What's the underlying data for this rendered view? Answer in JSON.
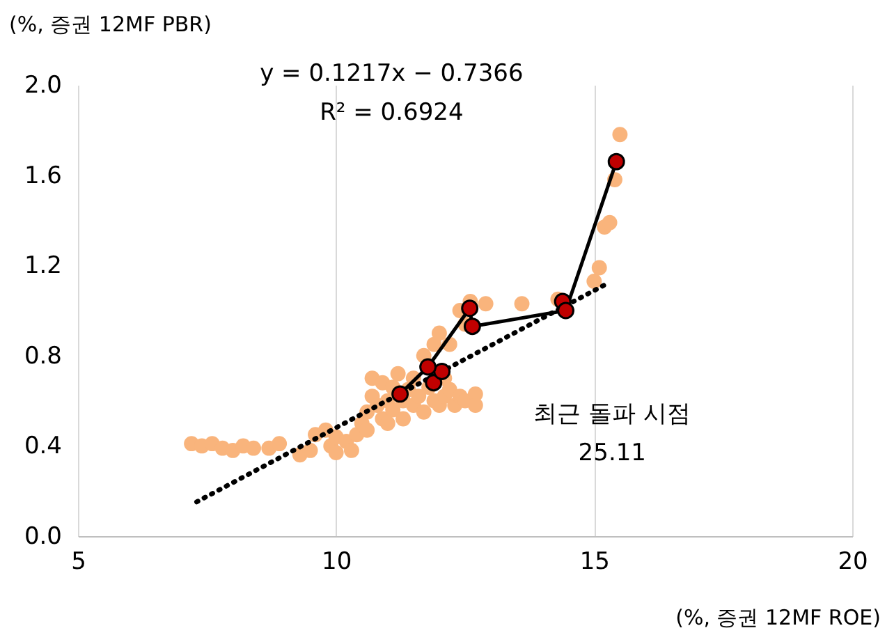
{
  "chart_data": {
    "type": "scatter",
    "xlabel": "(%, 증권 12MF ROE)",
    "ylabel": "(%, 증권 12MF PBR)",
    "xlim": [
      5,
      20
    ],
    "xticks": [
      5,
      10,
      15,
      20
    ],
    "ylim": [
      0,
      2
    ],
    "yticks": [
      {
        "value": 0,
        "label": "0.0"
      },
      0.4,
      0.8,
      1.2,
      1.6,
      {
        "value": 2,
        "label": "2.0"
      }
    ],
    "grid": "x",
    "annotations": [
      "y = 0.1217x − 0.7366",
      "R² = 0.6924",
      "최근 돌파 시점\n25.11"
    ],
    "series": [
      {
        "marker": "circle",
        "color": "#f9b47c",
        "x": [
          7.2,
          7.4,
          7.6,
          7.8,
          8.0,
          8.2,
          8.4,
          8.7,
          8.9,
          9.3,
          9.5,
          9.6,
          9.8,
          9.9,
          10.0,
          10.0,
          10.2,
          10.3,
          10.4,
          10.5,
          10.6,
          10.6,
          10.7,
          10.7,
          10.8,
          10.9,
          10.9,
          11.0,
          11.0,
          11.1,
          11.1,
          11.2,
          11.3,
          11.3,
          11.4,
          11.5,
          11.5,
          11.6,
          11.7,
          11.7,
          11.8,
          11.9,
          11.9,
          12.0,
          12.0,
          12.1,
          12.1,
          12.2,
          12.3,
          12.4,
          12.4,
          12.5,
          12.6,
          12.7,
          12.7,
          12.5,
          12.9,
          13.6,
          14.3,
          15.0,
          15.1,
          15.2,
          15.3,
          15.4,
          15.5,
          12.2
        ],
        "values": [
          0.41,
          0.4,
          0.41,
          0.39,
          0.38,
          0.4,
          0.39,
          0.39,
          0.41,
          0.36,
          0.38,
          0.45,
          0.47,
          0.4,
          0.44,
          0.37,
          0.42,
          0.38,
          0.45,
          0.5,
          0.55,
          0.47,
          0.62,
          0.7,
          0.58,
          0.68,
          0.52,
          0.6,
          0.5,
          0.66,
          0.56,
          0.72,
          0.6,
          0.52,
          0.65,
          0.58,
          0.7,
          0.62,
          0.55,
          0.8,
          0.66,
          0.6,
          0.85,
          0.9,
          0.58,
          0.7,
          0.62,
          0.65,
          0.58,
          0.62,
          1.0,
          0.6,
          1.04,
          0.63,
          0.58,
          0.94,
          1.03,
          1.03,
          1.05,
          1.13,
          1.19,
          1.37,
          1.39,
          1.58,
          1.78,
          0.85
        ]
      },
      {
        "type": "line",
        "color": "#000000",
        "line_style": "dotted",
        "x": [
          7.3,
          15.2
        ],
        "values": [
          0.152,
          1.113
        ]
      },
      {
        "type": "line",
        "color": "#000000",
        "x": [
          11.24,
          11.78,
          12.59,
          12.64,
          14.45,
          15.43
        ],
        "values": [
          0.63,
          0.75,
          1.01,
          0.93,
          1.0,
          1.66
        ]
      },
      {
        "type": "scatter",
        "marker": "circle",
        "color": "#c00000",
        "x": [
          11.24,
          11.89,
          12.05,
          11.78,
          12.59,
          12.64,
          14.39,
          14.45,
          15.43
        ],
        "values": [
          0.63,
          0.68,
          0.73,
          0.75,
          1.01,
          0.93,
          1.04,
          1.0,
          1.66
        ]
      }
    ]
  }
}
